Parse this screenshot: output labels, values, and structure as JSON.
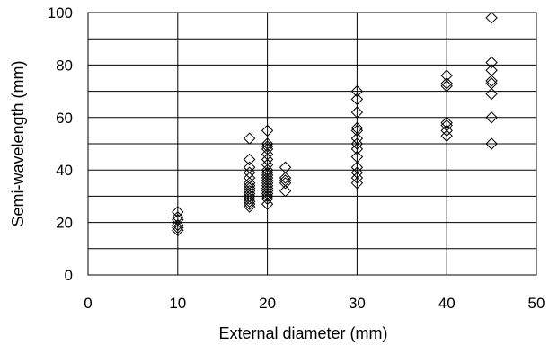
{
  "chart_data": {
    "type": "scatter",
    "title": "",
    "xlabel": "External diameter (mm)",
    "ylabel": "Semi-wavelength (mm)",
    "xlim": [
      0,
      50
    ],
    "ylim": [
      0,
      100
    ],
    "x_ticks": [
      0,
      10,
      20,
      30,
      40,
      50
    ],
    "y_ticks": [
      0,
      20,
      40,
      60,
      80,
      100
    ],
    "grid": true,
    "marker": "diamond-open",
    "series": [
      {
        "points": [
          [
            10,
            24
          ],
          [
            10,
            22
          ],
          [
            10,
            21
          ],
          [
            10,
            19
          ],
          [
            10,
            18
          ],
          [
            10,
            17
          ],
          [
            18,
            52
          ],
          [
            18,
            44
          ],
          [
            18,
            41
          ],
          [
            18,
            39
          ],
          [
            18,
            37
          ],
          [
            18,
            35
          ],
          [
            18,
            34
          ],
          [
            18,
            33
          ],
          [
            18,
            32
          ],
          [
            18,
            31
          ],
          [
            18,
            30
          ],
          [
            18,
            29
          ],
          [
            18,
            28
          ],
          [
            18,
            27
          ],
          [
            18,
            26
          ],
          [
            20,
            55
          ],
          [
            20,
            50
          ],
          [
            20,
            49
          ],
          [
            20,
            48
          ],
          [
            20,
            46
          ],
          [
            20,
            44
          ],
          [
            20,
            42
          ],
          [
            20,
            40
          ],
          [
            20,
            39
          ],
          [
            20,
            38
          ],
          [
            20,
            37
          ],
          [
            20,
            36
          ],
          [
            20,
            35
          ],
          [
            20,
            34
          ],
          [
            20,
            33
          ],
          [
            20,
            32
          ],
          [
            20,
            31
          ],
          [
            20,
            30
          ],
          [
            20,
            29
          ],
          [
            20,
            27
          ],
          [
            22,
            41
          ],
          [
            22,
            37
          ],
          [
            22,
            36
          ],
          [
            22,
            35
          ],
          [
            22,
            32
          ],
          [
            30,
            70
          ],
          [
            30,
            67
          ],
          [
            30,
            62
          ],
          [
            30,
            56
          ],
          [
            30,
            55
          ],
          [
            30,
            52
          ],
          [
            30,
            50
          ],
          [
            30,
            48
          ],
          [
            30,
            45
          ],
          [
            30,
            41
          ],
          [
            30,
            39
          ],
          [
            30,
            37
          ],
          [
            30,
            35
          ],
          [
            40,
            76
          ],
          [
            40,
            73
          ],
          [
            40,
            72
          ],
          [
            40,
            58
          ],
          [
            40,
            57
          ],
          [
            40,
            55
          ],
          [
            40,
            53
          ],
          [
            45,
            98
          ],
          [
            45,
            81
          ],
          [
            45,
            78
          ],
          [
            45,
            74
          ],
          [
            45,
            73
          ],
          [
            45,
            69
          ],
          [
            45,
            60
          ],
          [
            45,
            50
          ]
        ]
      }
    ]
  }
}
